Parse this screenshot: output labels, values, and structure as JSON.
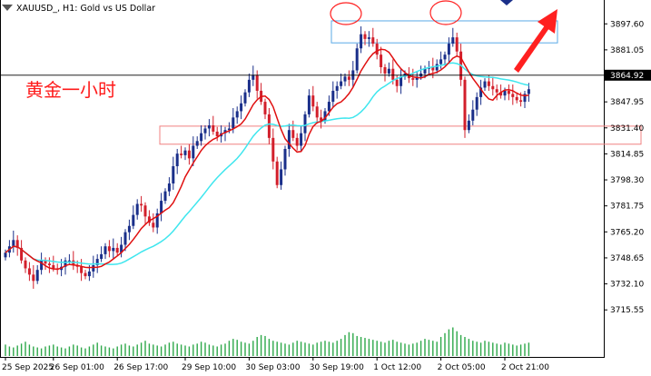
{
  "header": {
    "symbol": "XAUUSD_, H1: Gold vs US Dollar",
    "icon": "chevron-down-icon"
  },
  "annotation": {
    "text": "黄金一小时",
    "color": "#ff3030"
  },
  "colors": {
    "bull": "#1a2f8a",
    "bear": "#d21f2b",
    "ma_fast": "#e01010",
    "ma_slow": "#3fe6ee",
    "volume": "#2ea84a",
    "zone_top": "#5aa9e6",
    "zone_bottom": "#f08080",
    "arrow": "#ff2020"
  },
  "chart_data": {
    "type": "candlestick",
    "timeframe": "H1",
    "ylim": [
      3707.0,
      3907.0
    ],
    "y_ticks": [
      3897.6,
      3881.05,
      3864.5,
      3847.95,
      3831.4,
      3814.85,
      3798.3,
      3781.75,
      3765.2,
      3748.65,
      3732.1,
      3715.55
    ],
    "current_price": "3864.92",
    "x_labels": [
      {
        "index": 0,
        "label": "25 Sep 2025"
      },
      {
        "index": 12,
        "label": "26 Sep 01:00"
      },
      {
        "index": 28,
        "label": "26 Sep 17:00"
      },
      {
        "index": 45,
        "label": "29 Sep 10:00"
      },
      {
        "index": 61,
        "label": "30 Sep 03:00"
      },
      {
        "index": 77,
        "label": "30 Sep 19:00"
      },
      {
        "index": 93,
        "label": "1 Oct 12:00"
      },
      {
        "index": 109,
        "label": "2 Oct 05:00"
      },
      {
        "index": 125,
        "label": "2 Oct 21:00"
      }
    ],
    "close": [
      3752,
      3756,
      3760,
      3755,
      3747,
      3742,
      3738,
      3734,
      3741,
      3747,
      3745,
      3744,
      3742,
      3741,
      3743,
      3747,
      3747,
      3744,
      3743,
      3739,
      3737,
      3740,
      3744,
      3748,
      3751,
      3756,
      3753,
      3755,
      3752,
      3757,
      3765,
      3769,
      3776,
      3783,
      3782,
      3775,
      3771,
      3768,
      3777,
      3785,
      3791,
      3796,
      3807,
      3815,
      3814,
      3817,
      3812,
      3820,
      3823,
      3828,
      3831,
      3833,
      3829,
      3826,
      3828,
      3830,
      3831,
      3838,
      3842,
      3847,
      3854,
      3862,
      3865,
      3855,
      3848,
      3840,
      3825,
      3810,
      3795,
      3805,
      3818,
      3830,
      3825,
      3820,
      3828,
      3840,
      3852,
      3845,
      3838,
      3836,
      3842,
      3848,
      3855,
      3858,
      3861,
      3864,
      3862,
      3868,
      3882,
      3891,
      3888,
      3889,
      3885,
      3878,
      3870,
      3866,
      3869,
      3862,
      3858,
      3864,
      3866,
      3863,
      3862,
      3864,
      3866,
      3869,
      3870,
      3868,
      3872,
      3875,
      3878,
      3885,
      3889,
      3880,
      3862,
      3830,
      3836,
      3843,
      3851,
      3857,
      3861,
      3858,
      3856,
      3854,
      3852,
      3855,
      3853,
      3851,
      3849,
      3848,
      3853,
      3856
    ],
    "volume": [
      12,
      10,
      9,
      11,
      13,
      15,
      12,
      10,
      9,
      8,
      10,
      11,
      12,
      10,
      9,
      8,
      10,
      12,
      11,
      9,
      8,
      10,
      12,
      14,
      11,
      10,
      9,
      8,
      10,
      12,
      13,
      11,
      10,
      12,
      14,
      16,
      13,
      12,
      11,
      10,
      12,
      14,
      15,
      13,
      12,
      11,
      10,
      12,
      13,
      15,
      14,
      12,
      11,
      10,
      12,
      13,
      16,
      18,
      17,
      15,
      14,
      13,
      16,
      20,
      22,
      21,
      18,
      16,
      15,
      14,
      13,
      12,
      14,
      16,
      15,
      14,
      13,
      12,
      14,
      15,
      16,
      15,
      14,
      16,
      18,
      22,
      25,
      24,
      21,
      20,
      19,
      18,
      17,
      16,
      15,
      14,
      16,
      17,
      15,
      14,
      13,
      12,
      13,
      14,
      16,
      18,
      17,
      16,
      15,
      20,
      24,
      28,
      30,
      26,
      22,
      20,
      18,
      16,
      15,
      14,
      16,
      15,
      14,
      13,
      12,
      14,
      13,
      12,
      11,
      12,
      13,
      14
    ]
  }
}
